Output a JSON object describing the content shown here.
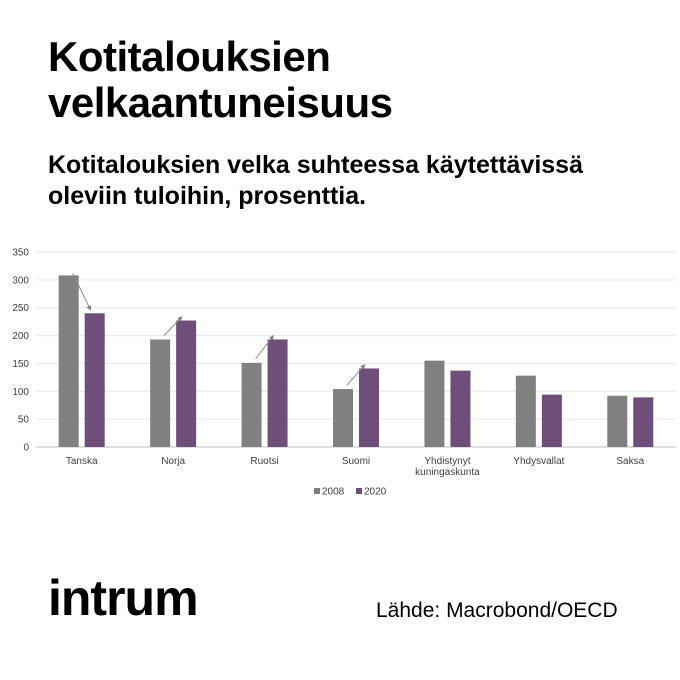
{
  "title": "Kotitalouksien velkaantuneisuus",
  "subtitle": "Kotitalouksien velka suhteessa käytettävissä oleviin tuloihin, prosenttia.",
  "source": "Lähde: Macrobond/OECD",
  "logo_text": "intrum",
  "chart_data": {
    "type": "bar",
    "categories": [
      "Tanska",
      "Norja",
      "Ruotsi",
      "Suomi",
      [
        "Yhdistynyt",
        "kuningaskunta"
      ],
      "Yhdysvallat",
      "Saksa"
    ],
    "series": [
      {
        "name": "2008",
        "values": [
          308,
          193,
          151,
          104,
          155,
          128,
          92
        ],
        "color": "#808080"
      },
      {
        "name": "2020",
        "values": [
          240,
          227,
          193,
          141,
          137,
          94,
          89
        ],
        "color": "#6e4f79"
      }
    ],
    "ylim": [
      0,
      350
    ],
    "yticks": [
      0,
      50,
      100,
      150,
      200,
      250,
      300,
      350
    ],
    "xlabel": "",
    "ylabel": "",
    "grid": true,
    "legend": "bottom",
    "arrow_categories": [
      0,
      1,
      2,
      3
    ]
  }
}
